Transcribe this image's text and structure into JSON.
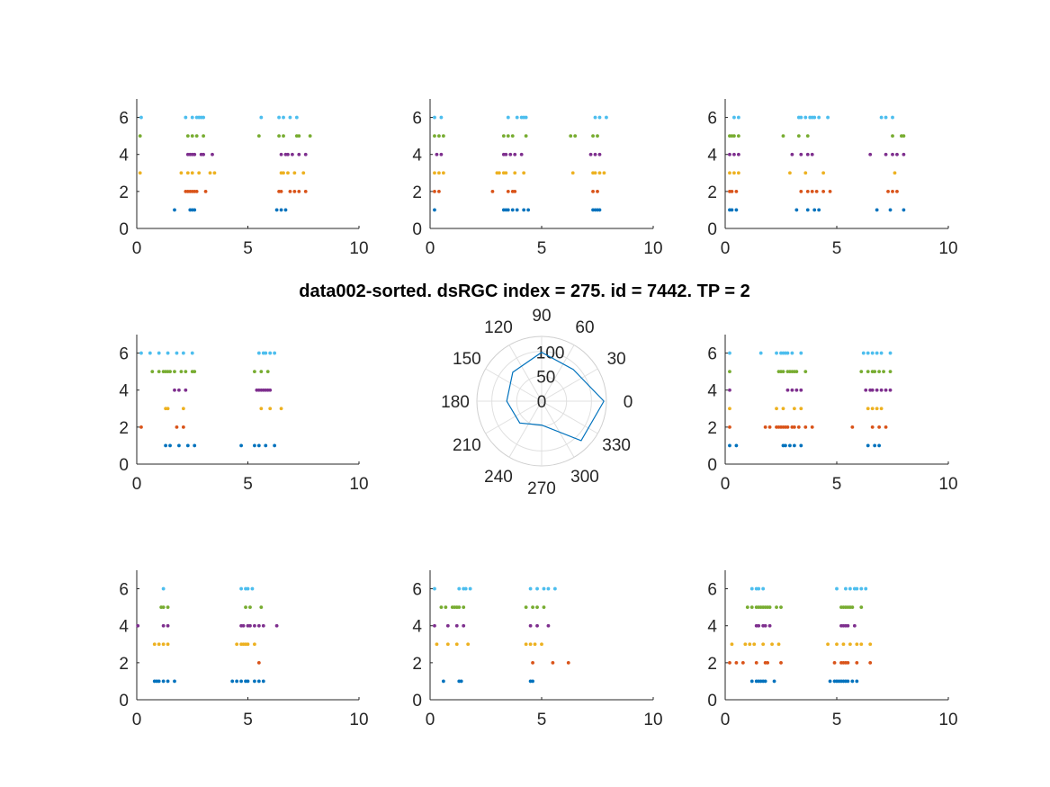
{
  "colors": {
    "series": [
      "#0072BD",
      "#D95319",
      "#EDB120",
      "#7E2F8E",
      "#77AC30",
      "#4DBEEE"
    ],
    "axis": "#262626",
    "grid": "#e0e0e0",
    "polar_line": "#0072BD"
  },
  "chart_data": {
    "title": "data002-sorted. dsRGC index = 275. id = 7442. TP = 2",
    "raster": {
      "type": "scatter",
      "xlim": [
        0,
        10
      ],
      "ylim": [
        0,
        7
      ],
      "xticks": [
        0,
        5,
        10
      ],
      "yticks": [
        0,
        2,
        4,
        6
      ],
      "xtick_labels": [
        "0",
        "5",
        "10"
      ],
      "ytick_labels": [
        "0",
        "2",
        "4",
        "6"
      ],
      "panels": [
        {
          "position": "top-left",
          "trials": [
            [
              1.7,
              2.4,
              2.5,
              2.6,
              6.3,
              6.5,
              6.7
            ],
            [
              2.2,
              2.3,
              2.4,
              2.5,
              2.6,
              2.7,
              3.1,
              6.4,
              6.5,
              6.9,
              7.1,
              7.3,
              7.6
            ],
            [
              0.15,
              2.0,
              2.3,
              2.5,
              2.8,
              3.3,
              3.5,
              6.5,
              6.6,
              6.8,
              7.1,
              7.5
            ],
            [
              2.3,
              2.4,
              2.5,
              2.6,
              2.9,
              3.0,
              3.4,
              6.5,
              6.7,
              6.8,
              7.0,
              7.3,
              7.6
            ],
            [
              0.15,
              2.3,
              2.5,
              2.7,
              3.0,
              5.5,
              6.4,
              6.6,
              7.2,
              7.3,
              7.8
            ],
            [
              0.2,
              2.2,
              2.5,
              2.7,
              2.8,
              2.9,
              3.0,
              5.6,
              6.4,
              6.6,
              6.9,
              7.2
            ]
          ]
        },
        {
          "position": "top-center",
          "trials": [
            [
              0.2,
              3.3,
              3.4,
              3.5,
              3.7,
              3.9,
              4.2,
              4.4,
              7.3,
              7.4,
              7.5,
              7.6
            ],
            [
              0.2,
              0.4,
              2.8,
              3.5,
              3.7,
              3.8,
              7.3,
              7.5
            ],
            [
              0.2,
              0.4,
              0.6,
              3.0,
              3.1,
              3.3,
              3.4,
              3.8,
              4.2,
              6.4,
              7.3,
              7.4,
              7.6,
              7.8
            ],
            [
              0.3,
              0.5,
              3.3,
              3.4,
              3.6,
              3.8,
              4.1,
              7.2,
              7.4,
              7.6
            ],
            [
              0.2,
              0.4,
              0.6,
              3.3,
              3.5,
              3.7,
              4.3,
              6.3,
              6.5,
              7.3,
              7.5
            ],
            [
              0.2,
              0.5,
              3.5,
              3.9,
              4.1,
              4.2,
              4.3,
              7.4,
              7.6,
              7.9
            ]
          ]
        },
        {
          "position": "top-right",
          "trials": [
            [
              0.2,
              0.3,
              0.5,
              3.2,
              3.7,
              4.0,
              4.2,
              6.8,
              7.4,
              8.0
            ],
            [
              0.2,
              0.3,
              0.5,
              3.4,
              3.7,
              3.9,
              4.1,
              4.4,
              4.7,
              7.3,
              7.5,
              7.7
            ],
            [
              0.2,
              0.4,
              0.6,
              2.9,
              3.6,
              4.4,
              7.6
            ],
            [
              0.2,
              0.4,
              0.6,
              3.0,
              3.4,
              3.7,
              3.9,
              6.5,
              7.2,
              7.5,
              7.7,
              8.0
            ],
            [
              0.2,
              0.3,
              0.4,
              0.6,
              2.6,
              3.3,
              3.7,
              7.5,
              7.9,
              8.0
            ],
            [
              0.4,
              0.6,
              3.3,
              3.4,
              3.6,
              3.8,
              3.9,
              4.0,
              4.2,
              4.6,
              7.0,
              7.2,
              7.5
            ]
          ]
        },
        {
          "position": "middle-left",
          "trials": [
            [
              1.3,
              1.5,
              1.9,
              2.3,
              2.6,
              4.7,
              5.3,
              5.5,
              5.8,
              6.2
            ],
            [
              0.2,
              1.8,
              2.1
            ],
            [
              1.3,
              1.4,
              2.1,
              5.6,
              6.0,
              6.5
            ],
            [
              1.7,
              1.9,
              2.2,
              5.4,
              5.5,
              5.6,
              5.7,
              5.8,
              5.9,
              6.0
            ],
            [
              0.7,
              1.0,
              1.2,
              1.3,
              1.4,
              1.5,
              1.7,
              2.0,
              2.2,
              2.5,
              2.6,
              5.3,
              5.6,
              5.9
            ],
            [
              0.2,
              0.6,
              1.0,
              1.4,
              1.8,
              2.1,
              2.5,
              5.5,
              5.7,
              5.8,
              6.0,
              6.2
            ]
          ]
        },
        {
          "position": "middle-right",
          "trials": [
            [
              0.2,
              0.5,
              2.6,
              2.7,
              2.9,
              3.1,
              3.4,
              6.4,
              6.7,
              6.9
            ],
            [
              0.2,
              1.8,
              2.0,
              2.3,
              2.4,
              2.5,
              2.6,
              2.7,
              2.8,
              3.0,
              3.1,
              3.3,
              3.6,
              3.9,
              5.7,
              6.6,
              6.9,
              7.2
            ],
            [
              0.2,
              2.3,
              2.6,
              3.1,
              3.4,
              6.4,
              6.6,
              6.8,
              7.0
            ],
            [
              0.2,
              2.8,
              3.0,
              3.2,
              3.4,
              6.3,
              6.5,
              6.6,
              6.8,
              7.0,
              7.2,
              7.4
            ],
            [
              0.2,
              2.4,
              2.5,
              2.6,
              2.8,
              2.9,
              3.0,
              3.1,
              3.2,
              3.6,
              6.1,
              6.4,
              6.6,
              6.7,
              6.9,
              7.1,
              7.4
            ],
            [
              0.2,
              1.6,
              2.3,
              2.5,
              2.6,
              2.7,
              2.8,
              3.0,
              3.4,
              6.2,
              6.4,
              6.6,
              6.8,
              7.0,
              7.4
            ]
          ]
        },
        {
          "position": "bottom-left",
          "trials": [
            [
              0.8,
              0.9,
              1.0,
              1.2,
              1.4,
              1.7,
              4.3,
              4.5,
              4.7,
              4.9,
              5.0,
              5.3,
              5.5,
              5.7
            ],
            [
              5.5
            ],
            [
              0.8,
              1.0,
              1.2,
              1.4,
              4.5,
              4.7,
              4.8,
              4.9,
              5.0,
              5.3
            ],
            [
              0.05,
              1.2,
              1.4,
              4.7,
              4.8,
              5.0,
              5.1,
              5.3,
              5.5,
              5.7,
              6.3
            ],
            [
              1.1,
              1.2,
              1.4,
              4.9,
              5.1,
              5.6
            ],
            [
              1.2,
              4.7,
              4.9,
              5.0,
              5.2
            ]
          ]
        },
        {
          "position": "bottom-center",
          "trials": [
            [
              0.6,
              1.3,
              1.4,
              4.5,
              4.6
            ],
            [
              4.6,
              5.5,
              6.2
            ],
            [
              0.3,
              0.8,
              1.2,
              1.7,
              4.3,
              4.5,
              4.7,
              5.0
            ],
            [
              0.2,
              0.8,
              1.2,
              1.5,
              4.5,
              4.8,
              5.3
            ],
            [
              0.5,
              0.7,
              1.0,
              1.1,
              1.2,
              1.3,
              1.5,
              4.3,
              4.6,
              4.8,
              5.1
            ],
            [
              0.2,
              1.3,
              1.5,
              1.6,
              1.8,
              4.5,
              4.8,
              5.1,
              5.3,
              5.6
            ]
          ]
        },
        {
          "position": "bottom-right",
          "trials": [
            [
              1.2,
              1.4,
              1.5,
              1.6,
              1.7,
              1.8,
              2.2,
              4.7,
              4.9,
              5.0,
              5.1,
              5.2,
              5.3,
              5.4,
              5.5,
              5.7,
              5.9
            ],
            [
              0.2,
              0.5,
              0.8,
              1.4,
              1.8,
              1.9,
              2.5,
              4.9,
              5.2,
              5.3,
              5.4,
              5.5,
              5.9,
              6.5
            ],
            [
              0.3,
              0.9,
              1.1,
              1.3,
              1.7,
              2.1,
              2.4,
              4.6,
              5.0,
              5.3,
              5.6,
              5.9,
              6.1,
              6.5
            ],
            [
              1.4,
              1.5,
              1.7,
              1.8,
              2.0,
              5.2,
              5.3,
              5.4,
              5.5,
              5.8
            ],
            [
              1.0,
              1.2,
              1.4,
              1.5,
              1.6,
              1.7,
              1.8,
              1.9,
              2.0,
              2.3,
              2.5,
              5.2,
              5.3,
              5.4,
              5.5,
              5.6,
              5.7,
              6.1
            ],
            [
              1.2,
              1.4,
              1.5,
              1.7,
              5.0,
              5.4,
              5.6,
              5.8,
              5.9,
              6.1,
              6.3
            ]
          ]
        }
      ]
    },
    "polar": {
      "type": "line",
      "position": "center",
      "rlim": [
        0,
        130
      ],
      "rticks": [
        0,
        50,
        100
      ],
      "rtick_labels": [
        "0",
        "50",
        "100"
      ],
      "theta_ticks_deg": [
        0,
        30,
        60,
        90,
        120,
        150,
        180,
        210,
        240,
        270,
        300,
        330
      ],
      "theta_tick_labels": [
        "0",
        "30",
        "60",
        "90",
        "120",
        "150",
        "180",
        "210",
        "240",
        "270",
        "300",
        "330"
      ],
      "directions_deg": [
        0,
        45,
        90,
        135,
        180,
        225,
        270,
        315
      ],
      "values": [
        125,
        90,
        98,
        82,
        70,
        62,
        48,
        112
      ]
    }
  }
}
